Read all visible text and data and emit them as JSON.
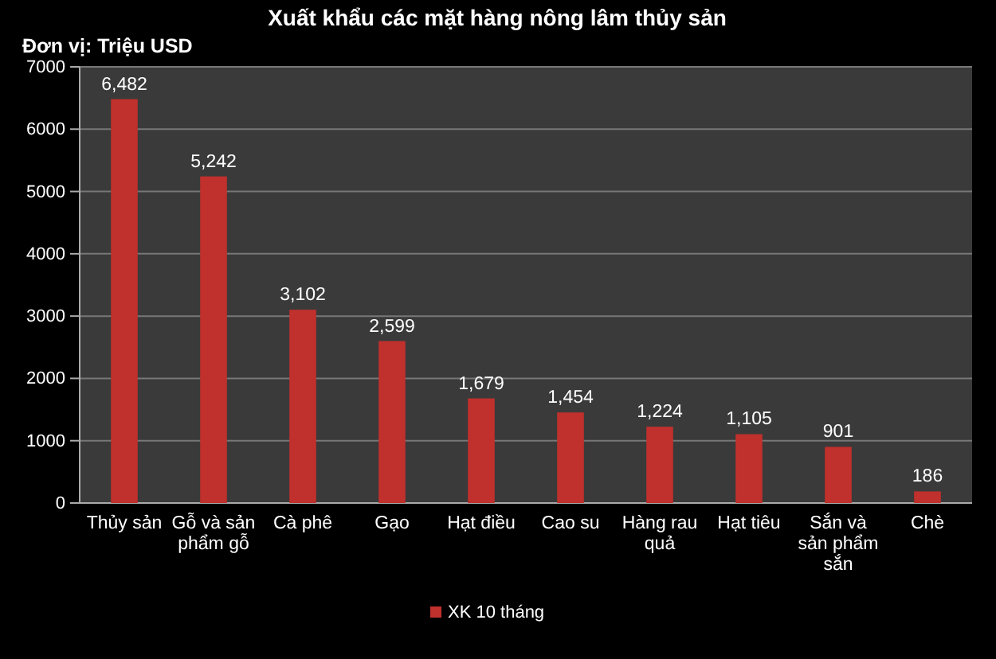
{
  "chart_data": {
    "type": "bar",
    "title": "Xuất khẩu các mặt hàng nông lâm thủy sản",
    "annotations": [
      "Đơn vị: Triệu USD"
    ],
    "categories": [
      "Thủy sản",
      "Gỗ và sản phẩm gỗ",
      "Cà phê",
      "Gạo",
      "Hạt điều",
      "Cao su",
      "Hàng rau quả",
      "Hạt tiêu",
      "Sắn và sản phẩm sắn",
      "Chè"
    ],
    "series": [
      {
        "name": "XK 10 tháng",
        "color": "#c0302c",
        "values": [
          6482,
          5242,
          3102,
          2599,
          1679,
          1454,
          1224,
          1105,
          901,
          186
        ]
      }
    ],
    "value_labels": [
      "6,482",
      "5,242",
      "3,102",
      "2,599",
      "1,679",
      "1,454",
      "1,224",
      "1,105",
      "901",
      "186"
    ],
    "ylim": [
      0,
      7000
    ],
    "yticks": [
      0,
      1000,
      2000,
      3000,
      4000,
      5000,
      6000,
      7000
    ],
    "grid": "y",
    "legend": "bottom"
  }
}
